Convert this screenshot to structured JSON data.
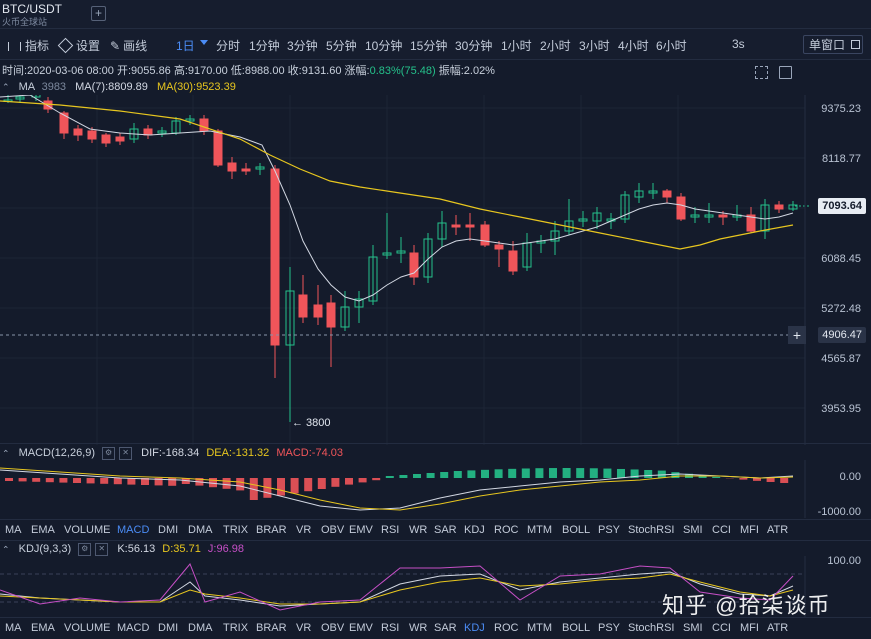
{
  "header": {
    "pair": "BTC/USDT",
    "exchange": "火币全球站",
    "add_label": "+"
  },
  "toolbar": {
    "indicators": "指标",
    "settings": "设置",
    "draw": "画线",
    "active_interval": "1日",
    "intervals": [
      "分时",
      "1分钟",
      "3分钟",
      "5分钟",
      "10分钟",
      "15分钟",
      "30分钟",
      "1小时",
      "2小时",
      "3小时",
      "4小时",
      "6小时"
    ],
    "right_interval": "3s",
    "single_window": "单窗口"
  },
  "ohlc": {
    "time": "时间:2020-03-06 08:00",
    "open": "开:9055.86",
    "high": "高:9170.00",
    "low": "低:8988.00",
    "close": "收:9131.60",
    "change_label": "涨幅:",
    "change": "0.83%(75.48)",
    "amplitude": "振幅:2.02%"
  },
  "ma_legend": {
    "label": "MA",
    "ma_partial": "3983",
    "ma7": "MA(7):8809.89",
    "ma30": "MA(30):9523.39"
  },
  "price_axis": [
    "9375.23",
    "8118.77",
    "7093.64",
    "6088.45",
    "5272.48",
    "4906.47",
    "4565.87",
    "3953.95"
  ],
  "current_price": "7093.64",
  "crosshair_price": "4906.47",
  "crosshair_plus": "+",
  "low_marker": "← 3800",
  "macd": {
    "label": "MACD(12,26,9)",
    "dif": "DIF:-168.34",
    "dea": "DEA:-131.32",
    "macd": "MACD:-74.03",
    "axis": [
      "0.00",
      "-1000.00"
    ]
  },
  "kdj": {
    "label": "KDJ(9,3,3)",
    "k": "K:56.13",
    "d": "D:35.71",
    "j": "J:96.98",
    "axis": [
      "100.00"
    ]
  },
  "indicator_tabs": [
    "MA",
    "EMA",
    "VOLUME",
    "MACD",
    "DMI",
    "DMA",
    "TRIX",
    "BRAR",
    "VR",
    "OBV",
    "EMV",
    "RSI",
    "WR",
    "SAR",
    "KDJ",
    "ROC",
    "MTM",
    "BOLL",
    "PSY",
    "StochRSI",
    "SMI",
    "CCI",
    "MFI",
    "ATR"
  ],
  "active_tab_row1": "MACD",
  "active_tab_row2": "KDJ",
  "watermark": "知乎 @拾柒谈币",
  "colors": {
    "bg": "#141b2b",
    "up": "#25c18b",
    "down": "#f0555a",
    "accent": "#4b8cf5",
    "ma30": "#e7c61f",
    "ma7": "#d2d7e2",
    "j_line": "#c64fc6"
  }
}
